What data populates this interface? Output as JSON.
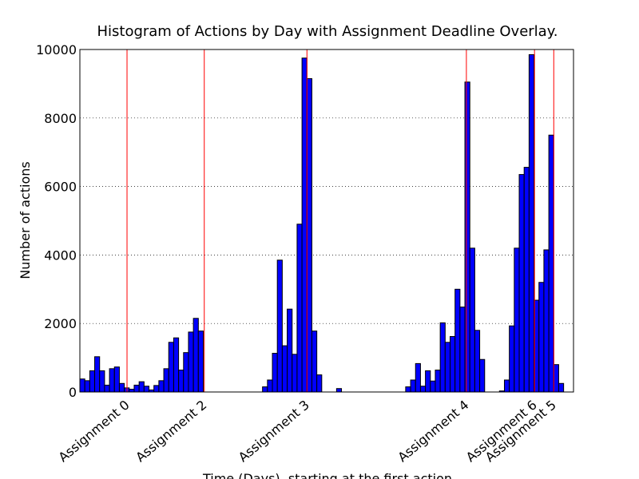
{
  "chart_data": {
    "type": "histogram",
    "title": "Histogram of Actions by Day with Assignment Deadline Overlay.",
    "x_label": "Time (Days), starting at the first action",
    "y_label": "Number of actions",
    "bins": [
      0,
      1,
      2,
      3,
      4,
      5,
      6,
      7,
      8,
      9,
      10,
      11,
      12,
      13,
      14,
      15,
      16,
      17,
      18,
      19,
      20,
      21,
      22,
      23,
      24,
      25,
      26,
      27,
      28,
      29,
      30,
      31,
      32,
      33,
      34,
      35,
      36,
      37,
      38,
      39,
      40,
      41,
      42,
      43,
      44,
      45,
      46,
      47,
      48,
      49,
      50,
      51,
      52,
      53,
      54,
      55,
      56,
      57,
      58,
      59,
      60,
      61,
      62,
      63,
      64,
      65,
      66,
      67,
      68,
      69,
      70,
      71,
      72,
      73,
      74,
      75,
      76,
      77,
      78,
      79,
      80,
      81,
      82,
      83,
      84,
      85,
      86,
      87,
      88,
      89,
      90,
      91,
      92,
      93,
      94,
      95,
      96,
      97,
      98,
      99,
      100
    ],
    "counts": [
      380,
      330,
      620,
      1030,
      620,
      200,
      680,
      730,
      250,
      120,
      80,
      200,
      300,
      170,
      60,
      190,
      330,
      680,
      1450,
      1580,
      640,
      1150,
      1750,
      2150,
      1780,
      0,
      0,
      0,
      0,
      0,
      0,
      0,
      0,
      0,
      0,
      0,
      0,
      150,
      350,
      1130,
      3850,
      1350,
      2420,
      1100,
      4900,
      9750,
      9150,
      1780,
      500,
      0,
      0,
      0,
      100,
      0,
      0,
      0,
      0,
      0,
      0,
      0,
      0,
      0,
      0,
      0,
      0,
      0,
      150,
      350,
      830,
      170,
      620,
      320,
      640,
      2020,
      1450,
      1620,
      3000,
      2480,
      9050,
      4200,
      1800,
      950,
      0,
      0,
      0,
      30,
      350,
      1930,
      4200,
      6350,
      6560,
      9850,
      2680,
      3200,
      4150,
      7500,
      800,
      250,
      0,
      0
    ],
    "color": "#0000ff",
    "deadline_color": "#ff0000",
    "xlim": [
      0,
      100
    ],
    "xticks": [
      {
        "value": 9.55,
        "label": "Assignment 0"
      },
      {
        "value": 25.2,
        "label": "Assignment 2"
      },
      {
        "value": 46.0,
        "label": "Assignment 3"
      },
      {
        "value": 78.3,
        "label": "Assignment 4"
      },
      {
        "value": 92.1,
        "label": "Assignment 6"
      },
      {
        "value": 96.0,
        "label": "Assignment 5"
      }
    ],
    "ylim": [
      0,
      10000
    ],
    "yticks": [
      0,
      2000,
      4000,
      6000,
      8000,
      10000
    ],
    "grid": true
  }
}
